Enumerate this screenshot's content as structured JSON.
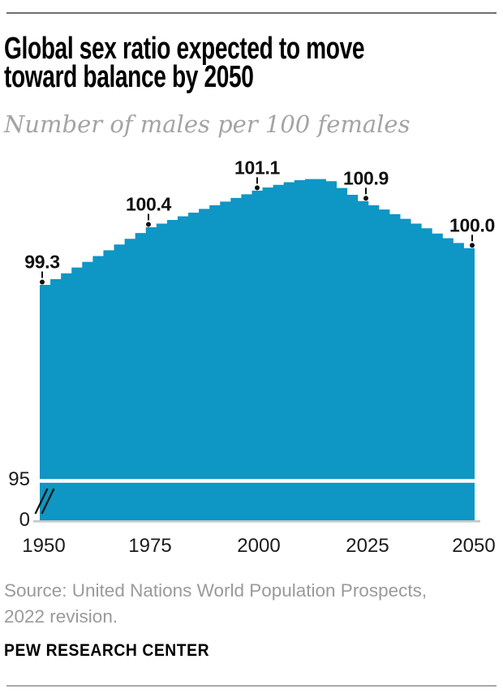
{
  "page": {
    "title_lines": [
      "Global sex ratio expected to move",
      "toward balance by 2050"
    ],
    "subtitle": "Number of males per 100 females",
    "source": "Source: United Nations World Population Prospects, 2022 revision.",
    "footer": "PEW RESEARCH CENTER"
  },
  "chart_data": {
    "type": "area",
    "step": true,
    "title": "Global sex ratio expected to move toward balance by 2050",
    "subtitle": "Number of males per 100 females",
    "ylabel": "Number of males per 100 females",
    "xlabel": "",
    "x_start": 1950,
    "x_end": 2050,
    "x_step_years": 2.5,
    "x": [
      1950,
      1952.5,
      1955,
      1957.5,
      1960,
      1962.5,
      1965,
      1967.5,
      1970,
      1972.5,
      1975,
      1977.5,
      1980,
      1982.5,
      1985,
      1987.5,
      1990,
      1992.5,
      1995,
      1997.5,
      2000,
      2002.5,
      2005,
      2007.5,
      2010,
      2012.5,
      2015,
      2017.5,
      2020,
      2022.5,
      2025,
      2027.5,
      2030,
      2032.5,
      2035,
      2037.5,
      2040,
      2042.5,
      2045,
      2047.5,
      2050
    ],
    "values": [
      99.3,
      99.41,
      99.52,
      99.63,
      99.74,
      99.85,
      99.96,
      100.07,
      100.18,
      100.29,
      100.4,
      100.47,
      100.54,
      100.61,
      100.68,
      100.75,
      100.82,
      100.89,
      100.96,
      101.03,
      101.1,
      101.16,
      101.21,
      101.26,
      101.3,
      101.32,
      101.32,
      101.28,
      101.15,
      101.02,
      100.9,
      100.82,
      100.74,
      100.65,
      100.56,
      100.47,
      100.38,
      100.28,
      100.19,
      100.1,
      100.0
    ],
    "annotations": [
      {
        "year": 1950,
        "value": 99.3,
        "label": "99.3"
      },
      {
        "year": 1975,
        "value": 100.4,
        "label": "100.4"
      },
      {
        "year": 2000,
        "value": 101.1,
        "label": "101.1"
      },
      {
        "year": 2025,
        "value": 100.9,
        "label": "100.9"
      },
      {
        "year": 2050,
        "value": 100.0,
        "label": "100.0"
      }
    ],
    "x_ticks": [
      "1950",
      "1975",
      "2000",
      "2025",
      "2050"
    ],
    "y_ticks": [
      "95",
      "0"
    ],
    "y_axis_break": true,
    "ylim_display": [
      95,
      101.5
    ],
    "grid": false,
    "legend": "none",
    "colors": {
      "area": "#0e96c4",
      "axis_line": "#c6c6c6",
      "annotation": "#101010",
      "subtitle_gray": "#a4a4a4",
      "source_gray": "#9a9a9a"
    }
  }
}
